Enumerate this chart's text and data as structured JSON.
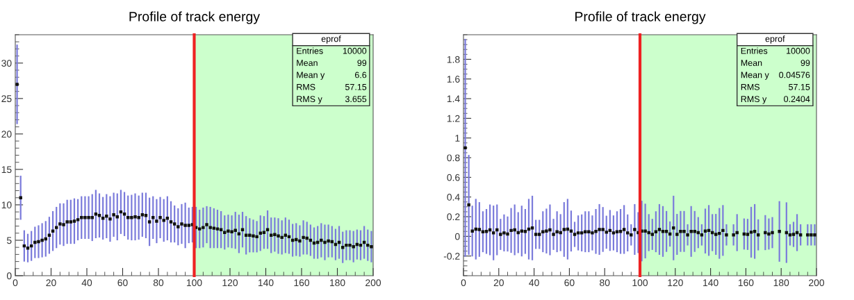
{
  "chart_data": [
    {
      "type": "scatter",
      "title": "Profile of track energy",
      "xlim": [
        0,
        200
      ],
      "xticks": [
        0,
        20,
        40,
        60,
        80,
        100,
        120,
        140,
        160,
        180,
        200
      ],
      "ylim": [
        0,
        34
      ],
      "yticks": [
        0,
        5,
        10,
        15,
        20,
        25,
        30
      ],
      "marker": "square",
      "grid": false,
      "legend": false,
      "x": [
        1,
        3,
        5,
        7,
        9,
        11,
        13,
        15,
        17,
        19,
        21,
        23,
        25,
        27,
        29,
        31,
        33,
        35,
        37,
        39,
        41,
        43,
        45,
        47,
        49,
        51,
        53,
        55,
        57,
        59,
        61,
        63,
        65,
        67,
        69,
        71,
        73,
        75,
        77,
        79,
        81,
        83,
        85,
        87,
        89,
        91,
        93,
        95,
        97,
        99,
        101,
        103,
        105,
        107,
        109,
        111,
        113,
        115,
        117,
        119,
        121,
        123,
        125,
        127,
        129,
        131,
        133,
        135,
        137,
        139,
        141,
        143,
        145,
        147,
        149,
        151,
        153,
        155,
        157,
        159,
        161,
        163,
        165,
        167,
        169,
        171,
        173,
        175,
        177,
        179,
        181,
        183,
        185,
        187,
        189,
        191,
        193,
        195,
        197,
        199
      ],
      "series": [
        {
          "color": "#111111",
          "values": [
            27,
            11,
            4.2,
            3.9,
            4.2,
            4.7,
            4.8,
            5.0,
            5.2,
            5.7,
            6.3,
            6.8,
            7.3,
            7.2,
            7.6,
            7.6,
            7.7,
            7.9,
            8.2,
            8.2,
            8.2,
            8.2,
            8.7,
            8.5,
            8.1,
            8.4,
            8.0,
            8.6,
            8.3,
            9.0,
            8.7,
            8.2,
            8.2,
            8.3,
            8.2,
            8.6,
            8.5,
            7.6,
            8.2,
            7.7,
            8.2,
            7.8,
            8.1,
            7.6,
            7.3,
            6.9,
            7.3,
            7.1,
            7.1,
            7.2,
            6.8,
            6.6,
            6.8,
            7.2,
            6.8,
            6.7,
            6.6,
            6.5,
            6.1,
            6.3,
            6.2,
            6.4,
            5.9,
            6.5,
            5.7,
            5.7,
            5.6,
            5.5,
            6.0,
            6.1,
            6.5,
            5.7,
            5.8,
            5.6,
            5.4,
            5.7,
            5.5,
            5.0,
            5.1,
            4.9,
            5.4,
            5.3,
            5.0,
            4.6,
            4.7,
            5.0,
            4.7,
            4.9,
            4.8,
            4.4,
            4.7,
            4.0,
            4.3,
            4.3,
            4.1,
            4.4,
            4.3,
            4.7,
            4.3,
            4.1
          ],
          "errors": [
            5.5,
            3,
            2.1,
            1.9,
            2.0,
            2.1,
            2.2,
            2.3,
            2.4,
            2.5,
            2.7,
            2.8,
            2.8,
            2.9,
            3.0,
            3.0,
            3.1,
            2.8,
            2.9,
            2.9,
            2.9,
            3.2,
            3.3,
            3.0,
            2.9,
            3.0,
            3.1,
            3.0,
            3.2,
            3.0,
            3.0,
            3.0,
            3.1,
            3.2,
            3.0,
            3.0,
            3.1,
            3.3,
            2.9,
            3.0,
            2.8,
            2.9,
            3.0,
            2.8,
            2.5,
            2.5,
            2.7,
            3.1,
            2.4,
            2.4,
            2.8,
            2.6,
            2.7,
            2.5,
            2.8,
            2.7,
            2.6,
            2.5,
            2.3,
            2.2,
            2.2,
            2.5,
            2.6,
            2.4,
            2.6,
            2.3,
            2.2,
            2.1,
            2.4,
            2.2,
            2.6,
            2.4,
            2.3,
            2.4,
            2.3,
            2.4,
            2.3,
            2.2,
            2.2,
            2.1,
            2.3,
            2.2,
            2.1,
            2.1,
            2.2,
            2.3,
            2.4,
            2.2,
            2.1,
            2.1,
            2.2,
            2.1,
            2.0,
            2.0,
            2.1,
            2.0,
            2.0,
            2.2,
            2.1,
            2.1
          ]
        }
      ],
      "bands": [
        {
          "axis": "x",
          "from": 100,
          "to": 200,
          "color": "#ccffcc"
        }
      ],
      "ref_lines": [
        {
          "axis": "x",
          "value": 100,
          "color": "#ee2222"
        }
      ],
      "annotations": [
        "eprof",
        "Entries",
        "10000",
        "Mean",
        "99",
        "Mean y",
        "6.6",
        "RMS",
        "57.15",
        "RMS y",
        "3.655"
      ]
    },
    {
      "type": "scatter",
      "title": "Profile of track energy",
      "xlim": [
        0,
        200
      ],
      "xticks": [
        0,
        20,
        40,
        60,
        80,
        100,
        120,
        140,
        160,
        180,
        200
      ],
      "ylim": [
        -0.4,
        2.05
      ],
      "yticks": [
        -0.2,
        0,
        0.2,
        0.4,
        0.6,
        0.8,
        1,
        1.2,
        1.4,
        1.6,
        1.8
      ],
      "marker": "square",
      "grid": false,
      "legend": false,
      "x": [
        1,
        3,
        5,
        7,
        9,
        11,
        13,
        15,
        17,
        19,
        21,
        23,
        25,
        27,
        29,
        31,
        33,
        35,
        37,
        39,
        41,
        43,
        45,
        47,
        49,
        51,
        53,
        55,
        57,
        59,
        61,
        63,
        65,
        67,
        69,
        71,
        73,
        75,
        77,
        79,
        81,
        83,
        85,
        87,
        89,
        91,
        93,
        95,
        97,
        99,
        101,
        103,
        105,
        107,
        109,
        111,
        113,
        115,
        117,
        119,
        121,
        123,
        125,
        127,
        129,
        131,
        133,
        135,
        137,
        139,
        141,
        143,
        145,
        147,
        149,
        151,
        153,
        155,
        157,
        159,
        161,
        163,
        165,
        167,
        169,
        171,
        173,
        175,
        177,
        179,
        181,
        183,
        185,
        187,
        189,
        191,
        193,
        195,
        197,
        199
      ],
      "series": [
        {
          "color": "#111111",
          "values": [
            0.9,
            0.32,
            0.054,
            0.073,
            0.07,
            0.047,
            0.05,
            0.066,
            0.035,
            0.066,
            0.02,
            0.035,
            0.024,
            0.06,
            0.066,
            0.038,
            0.054,
            0.05,
            0.073,
            0.085,
            0.02,
            0.02,
            0.047,
            0.054,
            0.066,
            0.02,
            0.047,
            0.038,
            0.07,
            0.073,
            0.054,
            0.02,
            0.035,
            0.035,
            0.047,
            0.047,
            0.035,
            0.05,
            0.07,
            0.07,
            0.042,
            0.06,
            0.035,
            0.047,
            0.05,
            0.07,
            0.035,
            0.015,
            0.07,
            0.038,
            0.054,
            0.054,
            0.038,
            0.02,
            0.047,
            0.07,
            0.05,
            0.05,
            0.024,
            0.085,
            0.02,
            0.05,
            0.05,
            0.015,
            0.05,
            0.05,
            0.038,
            0.015,
            0.054,
            0.06,
            0.038,
            0.02,
            0.03,
            0.06,
            0.015,
            null,
            0.015,
            0.038,
            null,
            0.024,
            0.02,
            0.042,
            0.05,
            0.015,
            null,
            0.038,
            0.024,
            0.038,
            null,
            0.05,
            null,
            0.038,
            0.015,
            0.02,
            0.038,
            0.015,
            null,
            0.015,
            0.015,
            0.015
          ],
          "errors": [
            1.1,
            0.5,
            0.25,
            0.3,
            0.27,
            0.2,
            0.22,
            0.25,
            0.27,
            0.25,
            0.15,
            0.18,
            0.17,
            0.22,
            0.25,
            0.2,
            0.25,
            0.22,
            0.3,
            0.32,
            0.14,
            0.14,
            0.2,
            0.22,
            0.25,
            0.15,
            0.2,
            0.18,
            0.27,
            0.3,
            0.2,
            0.12,
            0.17,
            0.18,
            0.2,
            0.2,
            0.17,
            0.22,
            0.25,
            0.22,
            0.16,
            0.2,
            0.17,
            0.2,
            0.22,
            0.24,
            0.18,
            0.1,
            0.25,
            0.2,
            0.3,
            0.27,
            0.18,
            0.15,
            0.2,
            0.25,
            0.25,
            0.2,
            0.12,
            0.32,
            0.2,
            0.2,
            0.2,
            0.1,
            0.25,
            0.2,
            0.15,
            0.1,
            0.22,
            0.25,
            0.18,
            0.2,
            0.25,
            0.25,
            0.1,
            null,
            0.1,
            0.18,
            null,
            0.15,
            0.15,
            0.25,
            0.27,
            0.15,
            null,
            0.17,
            0.15,
            0.15,
            null,
            0.3,
            null,
            0.3,
            0.1,
            0.12,
            0.18,
            0.1,
            null,
            0.1,
            0.1,
            0.1
          ]
        }
      ],
      "bands": [
        {
          "axis": "x",
          "from": 100,
          "to": 200,
          "color": "#ccffcc"
        }
      ],
      "ref_lines": [
        {
          "axis": "x",
          "value": 100,
          "color": "#ee2222"
        }
      ],
      "annotations": [
        "eprof",
        "Entries",
        "10000",
        "Mean",
        "99",
        "Mean y",
        "0.04576",
        "RMS",
        "57.15",
        "RMS y",
        "0.2404"
      ]
    }
  ]
}
